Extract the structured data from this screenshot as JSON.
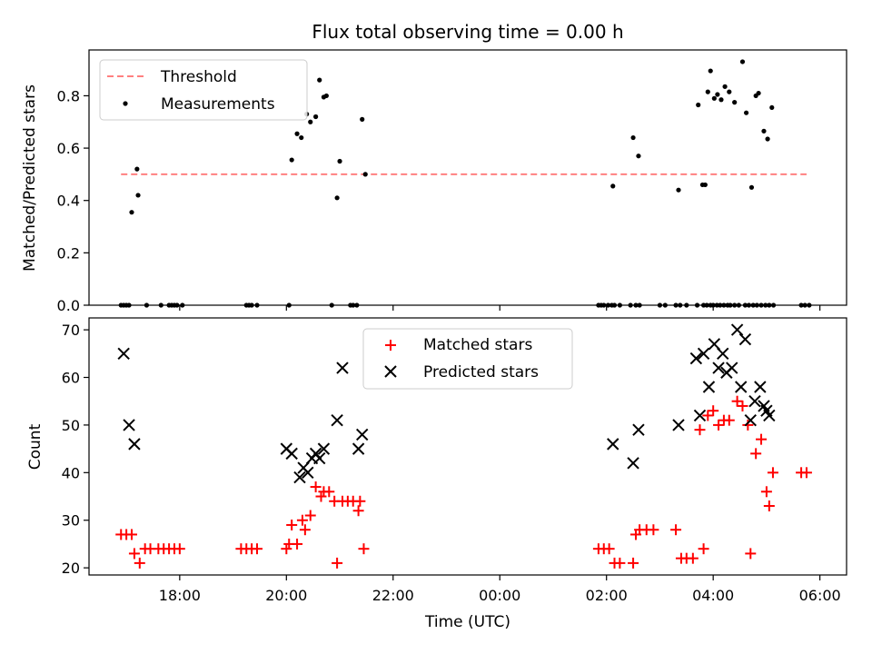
{
  "chart_data": [
    {
      "type": "scatter",
      "title": "Flux total observing time = 0.00 h",
      "xlabel": "",
      "ylabel": "Matched/Predicted stars",
      "ylim": [
        0,
        0.975
      ],
      "yticks": [
        0.0,
        0.2,
        0.4,
        0.6,
        0.8
      ],
      "ytick_labels": [
        "0.0",
        "0.2",
        "0.4",
        "0.6",
        "0.8"
      ],
      "grid": false,
      "legend_position": "top-left",
      "threshold": {
        "name": "Threshold",
        "value": 0.5,
        "x": [
          -7.1,
          5.75
        ],
        "color": "#ff8080"
      },
      "series": [
        {
          "name": "Measurements",
          "color": "#000000",
          "x": [
            -7.1,
            -7.05,
            -7.0,
            -6.95,
            -6.9,
            -6.78,
            -6.62,
            -6.35,
            -6.2,
            -6.15,
            -6.1,
            -6.05,
            -5.95,
            -4.75,
            -4.7,
            -4.65,
            -4.55,
            -3.95,
            -3.9,
            -3.8,
            -3.72,
            -3.62,
            -3.55,
            -3.45,
            -3.38,
            -3.3,
            -3.25,
            -3.15,
            -3.05,
            -3.0,
            -2.8,
            -2.75,
            -2.68,
            -2.58,
            -2.52,
            1.85,
            1.9,
            1.95,
            2.03,
            2.1,
            2.15,
            2.25,
            2.45,
            2.55,
            2.62,
            3.0,
            3.1,
            3.3,
            3.38,
            3.5,
            3.7,
            3.82,
            3.88,
            3.95,
            4.0,
            4.07,
            4.13,
            4.2,
            4.27,
            4.32,
            4.4,
            4.48,
            4.6,
            4.67,
            4.75,
            4.82,
            4.9,
            4.98,
            5.05,
            5.13,
            5.65,
            5.72,
            5.8
          ],
          "y": [
            0.0,
            0.0,
            0.0,
            0.0,
            0.355,
            0.42,
            0.0,
            0.0,
            0.0,
            0.0,
            0.0,
            0.0,
            0.0,
            0.0,
            0.0,
            0.0,
            0.0,
            0.0,
            0.555,
            0.655,
            0.64,
            0.73,
            0.7,
            0.72,
            0.86,
            0.795,
            0.8,
            0.0,
            0.41,
            0.55,
            0.0,
            0.0,
            0.0,
            0.71,
            0.5,
            0.0,
            0.0,
            0.0,
            0.0,
            0.0,
            0.0,
            0.0,
            0.0,
            0.0,
            0.0,
            0.0,
            0.0,
            0.0,
            0.0,
            0.0,
            0.0,
            0.0,
            0.0,
            0.0,
            0.0,
            0.0,
            0.0,
            0.0,
            0.0,
            0.0,
            0.0,
            0.0,
            0.0,
            0.0,
            0.0,
            0.0,
            0.0,
            0.0,
            0.0,
            0.0,
            0.0,
            0.0,
            0.0
          ],
          "extra_x": [
            -6.8,
            2.12,
            2.5,
            2.6,
            3.35,
            3.85,
            3.9,
            3.95,
            4.02,
            4.08,
            4.15,
            4.22,
            4.3,
            4.4,
            4.55,
            4.62,
            4.72,
            4.8,
            4.85,
            4.95,
            5.02,
            5.1,
            3.72,
            3.8
          ],
          "extra_y": [
            0.52,
            0.455,
            0.64,
            0.57,
            0.44,
            0.46,
            0.815,
            0.895,
            0.79,
            0.805,
            0.785,
            0.835,
            0.815,
            0.775,
            0.93,
            0.735,
            0.45,
            0.8,
            0.81,
            0.665,
            0.635,
            0.755,
            0.765,
            0.46
          ]
        }
      ]
    },
    {
      "type": "scatter",
      "title": "",
      "xlabel": "Time (UTC)",
      "ylabel": "Count",
      "ylim": [
        18.5,
        72.5
      ],
      "yticks": [
        20,
        30,
        40,
        50,
        60,
        70
      ],
      "ytick_labels": [
        "20",
        "30",
        "40",
        "50",
        "60",
        "70"
      ],
      "xlim": [
        -7.7,
        6.5
      ],
      "xticks": [
        -6,
        -4,
        -2,
        0,
        2,
        4,
        6
      ],
      "xtick_labels": [
        "18:00",
        "20:00",
        "22:00",
        "00:00",
        "02:00",
        "04:00",
        "06:00"
      ],
      "grid": false,
      "legend_position": "top-center",
      "series": [
        {
          "name": "Matched stars",
          "marker": "+",
          "color": "#ff0000",
          "x": [
            -7.1,
            -7.0,
            -6.9,
            -6.85,
            -6.75,
            -6.65,
            -6.55,
            -6.4,
            -6.3,
            -6.2,
            -6.1,
            -6.0,
            -4.85,
            -4.75,
            -4.65,
            -4.55,
            -4.0,
            -3.95,
            -3.9,
            -3.8,
            -3.7,
            -3.65,
            -3.55,
            -3.45,
            -3.35,
            -3.3,
            -3.2,
            -3.1,
            -3.05,
            -2.95,
            -2.85,
            -2.75,
            -2.65,
            -2.62,
            -2.55,
            1.85,
            1.95,
            2.05,
            2.15,
            2.25,
            2.5,
            2.55,
            2.62,
            2.75,
            2.88,
            3.3,
            3.4,
            3.5,
            3.62,
            3.75,
            3.82,
            3.9,
            4.0,
            4.1,
            4.2,
            4.3,
            4.45,
            4.55,
            4.65,
            4.7,
            4.8,
            4.9,
            5.0,
            5.05,
            5.12,
            5.65,
            5.75
          ],
          "y": [
            27,
            27,
            27,
            23,
            21,
            24,
            24,
            24,
            24,
            24,
            24,
            24,
            24,
            24,
            24,
            24,
            24,
            25,
            29,
            25,
            30,
            28,
            31,
            37,
            35,
            36,
            36,
            34,
            21,
            34,
            34,
            34,
            32,
            34,
            24,
            24,
            24,
            24,
            21,
            21,
            21,
            27,
            28,
            28,
            28,
            28,
            22,
            22,
            22,
            49,
            24,
            52,
            53,
            50,
            51,
            51,
            55,
            54,
            50,
            23,
            44,
            47,
            36,
            33,
            40,
            40,
            40
          ]
        },
        {
          "name": "Predicted stars",
          "marker": "x",
          "color": "#000000",
          "x": [
            -7.05,
            -6.95,
            -6.85,
            -4.0,
            -3.9,
            -3.75,
            -3.68,
            -3.6,
            -3.52,
            -3.45,
            -3.38,
            -3.3,
            -3.05,
            -2.95,
            -2.65,
            -2.58,
            2.12,
            2.5,
            2.6,
            3.35,
            3.68,
            3.75,
            3.82,
            3.92,
            4.02,
            4.1,
            4.18,
            4.25,
            4.35,
            4.45,
            4.52,
            4.6,
            4.7,
            4.78,
            4.88,
            4.95,
            5.0,
            5.05
          ],
          "y": [
            65,
            50,
            46,
            45,
            44,
            39,
            41,
            40,
            43,
            44,
            43,
            45,
            51,
            62,
            45,
            48,
            46,
            42,
            49,
            50,
            64,
            52,
            65,
            58,
            67,
            62,
            65,
            61,
            62,
            70,
            58,
            68,
            51,
            55,
            58,
            54,
            53,
            52
          ]
        }
      ]
    }
  ]
}
